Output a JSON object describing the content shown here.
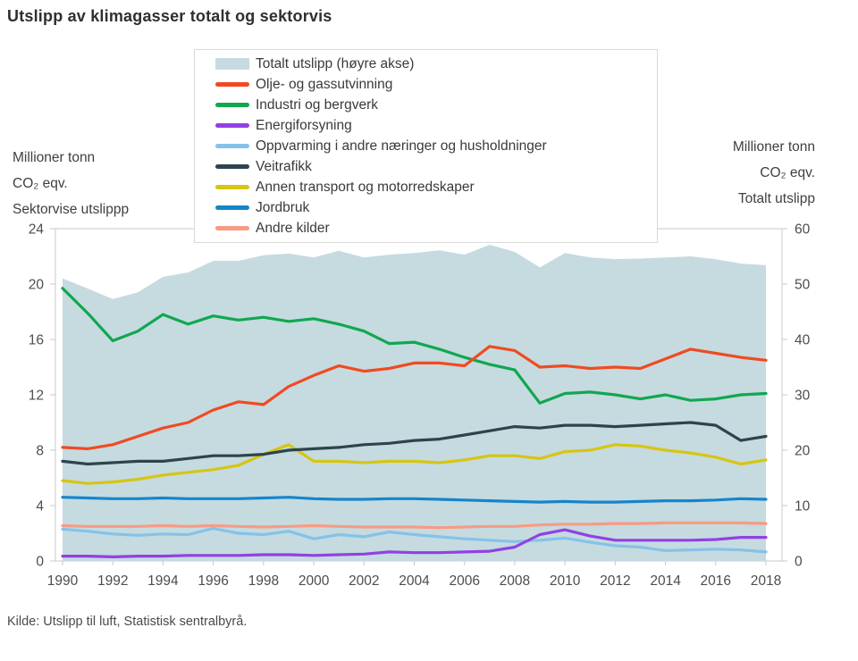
{
  "title": "Utslipp av klimagasser totalt og sektorvis",
  "source": "Kilde: Utslipp til luft, Statistisk sentralbyrå.",
  "left_axis": {
    "title_lines": [
      "Millioner tonn",
      "CO₂ eqv.",
      "Sektorvise utslippp"
    ],
    "ticks": [
      0,
      4,
      8,
      12,
      16,
      20,
      24
    ]
  },
  "right_axis": {
    "title_lines": [
      "Millioner tonn",
      "CO₂ eqv.",
      "Totalt utslipp"
    ],
    "ticks": [
      0,
      10,
      20,
      30,
      40,
      50,
      60
    ]
  },
  "legend": {
    "items": [
      {
        "label": "Totalt utslipp (høyre akse)",
        "color": "#c5dbe0"
      },
      {
        "label": "Olje- og gassutvinning",
        "color": "#f14a21"
      },
      {
        "label": "Industri og bergverk",
        "color": "#11a750"
      },
      {
        "label": "Energiforsyning",
        "color": "#9340e3"
      },
      {
        "label": "Oppvarming i andre næringer og husholdninger",
        "color": "#85c2e9"
      },
      {
        "label": "Veitrafikk",
        "color": "#2d444d"
      },
      {
        "label": "Annen transport og motorredskaper",
        "color": "#d7c511"
      },
      {
        "label": "Jordbruk",
        "color": "#1685cb"
      },
      {
        "label": "Andre kilder",
        "color": "#f79b84"
      }
    ]
  },
  "chart_data": {
    "type": "area",
    "title": "Utslipp av klimagasser totalt og sektorvis",
    "x": [
      1990,
      1991,
      1992,
      1993,
      1994,
      1995,
      1996,
      1997,
      1998,
      1999,
      2000,
      2001,
      2002,
      2003,
      2004,
      2005,
      2006,
      2007,
      2008,
      2009,
      2010,
      2011,
      2012,
      2013,
      2014,
      2015,
      2016,
      2017,
      2018
    ],
    "x_tick_labels": [
      "1990",
      "1992",
      "1994",
      "1996",
      "1998",
      "2000",
      "2002",
      "2004",
      "2006",
      "2008",
      "2010",
      "2012",
      "2014",
      "2016",
      "2018"
    ],
    "left_axis": {
      "range": [
        0,
        24
      ],
      "ticks": [
        0,
        4,
        8,
        12,
        16,
        20,
        24
      ],
      "label": "Millioner tonn CO₂ eqv. Sektorvise utslippp"
    },
    "right_axis": {
      "range": [
        0,
        60
      ],
      "ticks": [
        0,
        10,
        20,
        30,
        40,
        50,
        60
      ],
      "label": "Millioner tonn CO₂ eqv. Totalt utslipp"
    },
    "grid": false,
    "legend_position": "top",
    "series": [
      {
        "name": "Totalt utslipp (høyre akse)",
        "type": "area",
        "axis": "right",
        "color": "#c5dbe0",
        "values": [
          51.0,
          49.2,
          47.3,
          48.5,
          51.3,
          52.1,
          54.2,
          54.2,
          55.2,
          55.5,
          54.8,
          56.0,
          54.8,
          55.3,
          55.6,
          56.1,
          55.3,
          57.1,
          55.8,
          53.0,
          55.6,
          54.8,
          54.5,
          54.6,
          54.8,
          55.0,
          54.5,
          53.7,
          53.4
        ]
      },
      {
        "name": "Olje- og gassutvinning",
        "type": "line",
        "axis": "left",
        "color": "#f14a21",
        "values": [
          8.2,
          8.1,
          8.4,
          9.0,
          9.6,
          10.0,
          10.9,
          11.5,
          11.3,
          12.6,
          13.4,
          14.1,
          13.7,
          13.9,
          14.3,
          14.3,
          14.1,
          15.5,
          15.2,
          14.0,
          14.1,
          13.9,
          14.0,
          13.9,
          14.6,
          15.3,
          15.0,
          14.7,
          14.5
        ]
      },
      {
        "name": "Industri og bergverk",
        "type": "line",
        "axis": "left",
        "color": "#11a750",
        "values": [
          19.7,
          17.9,
          15.9,
          16.6,
          17.8,
          17.1,
          17.7,
          17.4,
          17.6,
          17.3,
          17.5,
          17.1,
          16.6,
          15.7,
          15.8,
          15.3,
          14.7,
          14.2,
          13.8,
          11.4,
          12.1,
          12.2,
          12.0,
          11.7,
          12.0,
          11.6,
          11.7,
          12.0,
          12.1
        ]
      },
      {
        "name": "Energiforsyning",
        "type": "line",
        "axis": "left",
        "color": "#9340e3",
        "values": [
          0.35,
          0.35,
          0.3,
          0.35,
          0.35,
          0.4,
          0.4,
          0.4,
          0.45,
          0.45,
          0.4,
          0.45,
          0.5,
          0.65,
          0.6,
          0.6,
          0.65,
          0.7,
          1.0,
          1.9,
          2.25,
          1.8,
          1.5,
          1.5,
          1.5,
          1.5,
          1.55,
          1.7,
          1.7
        ]
      },
      {
        "name": "Oppvarming i andre næringer og husholdninger",
        "type": "line",
        "axis": "left",
        "color": "#85c2e9",
        "values": [
          2.3,
          2.15,
          1.95,
          1.85,
          1.95,
          1.9,
          2.35,
          2.0,
          1.9,
          2.15,
          1.6,
          1.9,
          1.75,
          2.1,
          1.9,
          1.75,
          1.6,
          1.5,
          1.4,
          1.5,
          1.65,
          1.35,
          1.1,
          1.0,
          0.75,
          0.8,
          0.85,
          0.8,
          0.65
        ]
      },
      {
        "name": "Veitrafikk",
        "type": "line",
        "axis": "left",
        "color": "#2d444d",
        "values": [
          7.2,
          7.0,
          7.1,
          7.2,
          7.2,
          7.4,
          7.6,
          7.6,
          7.7,
          8.0,
          8.1,
          8.2,
          8.4,
          8.5,
          8.7,
          8.8,
          9.1,
          9.4,
          9.7,
          9.6,
          9.8,
          9.8,
          9.7,
          9.8,
          9.9,
          10.0,
          9.8,
          8.7,
          9.0
        ]
      },
      {
        "name": "Annen transport og motorredskaper",
        "type": "line",
        "axis": "left",
        "color": "#d7c511",
        "values": [
          5.8,
          5.6,
          5.7,
          5.9,
          6.2,
          6.4,
          6.6,
          6.9,
          7.7,
          8.4,
          7.2,
          7.2,
          7.1,
          7.2,
          7.2,
          7.1,
          7.3,
          7.6,
          7.6,
          7.4,
          7.9,
          8.0,
          8.4,
          8.3,
          8.0,
          7.8,
          7.5,
          7.0,
          7.3
        ]
      },
      {
        "name": "Jordbruk",
        "type": "line",
        "axis": "left",
        "color": "#1685cb",
        "values": [
          4.6,
          4.55,
          4.5,
          4.5,
          4.55,
          4.5,
          4.5,
          4.5,
          4.55,
          4.6,
          4.5,
          4.45,
          4.45,
          4.5,
          4.5,
          4.45,
          4.4,
          4.35,
          4.3,
          4.25,
          4.3,
          4.25,
          4.25,
          4.3,
          4.35,
          4.35,
          4.4,
          4.5,
          4.45
        ]
      },
      {
        "name": "Andre kilder",
        "type": "line",
        "axis": "left",
        "color": "#f79b84",
        "values": [
          2.55,
          2.5,
          2.5,
          2.5,
          2.55,
          2.5,
          2.55,
          2.5,
          2.45,
          2.5,
          2.55,
          2.5,
          2.45,
          2.45,
          2.45,
          2.4,
          2.45,
          2.5,
          2.5,
          2.6,
          2.65,
          2.65,
          2.7,
          2.7,
          2.75,
          2.75,
          2.75,
          2.75,
          2.7
        ]
      }
    ]
  }
}
